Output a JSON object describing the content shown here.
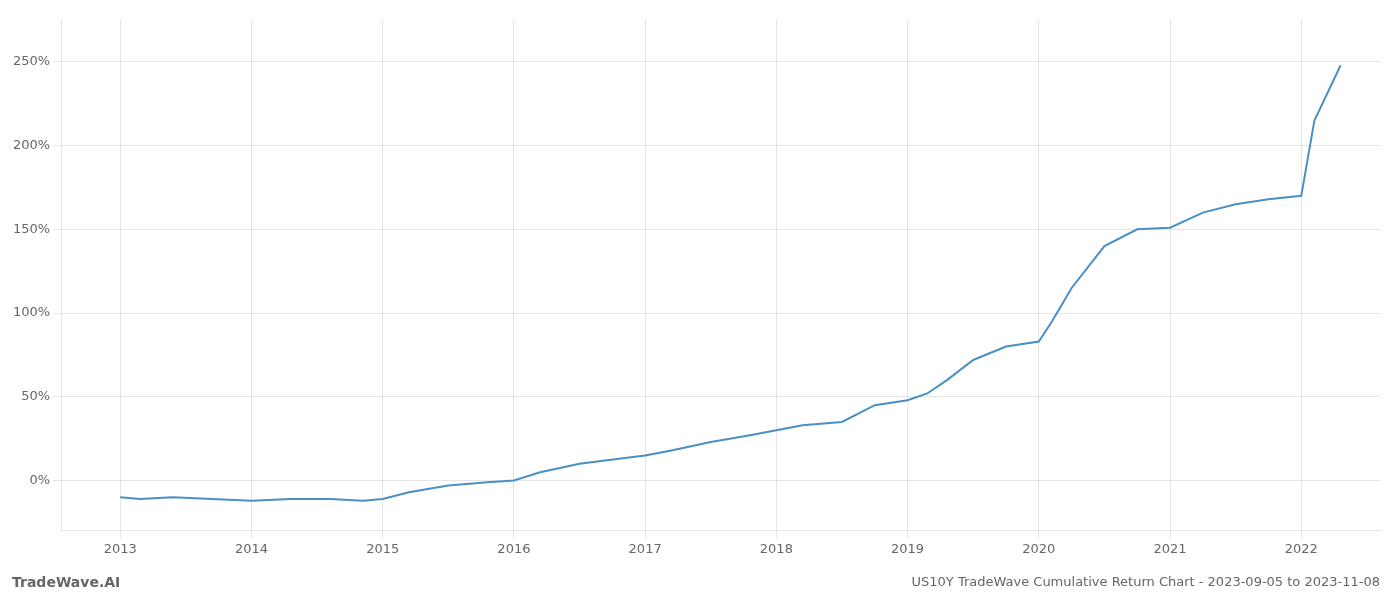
{
  "chart_data": {
    "type": "line",
    "title": "US10Y TradeWave Cumulative Return Chart - 2023-09-05 to 2023-11-08",
    "annotations": [
      "TradeWave.AI"
    ],
    "color": "#4a90c4",
    "grid": true,
    "x": [
      2013.0,
      2013.15,
      2013.4,
      2013.7,
      2014.0,
      2014.3,
      2014.6,
      2014.85,
      2015.0,
      2015.2,
      2015.5,
      2015.8,
      2016.0,
      2016.2,
      2016.5,
      2016.8,
      2017.0,
      2017.2,
      2017.5,
      2017.8,
      2018.0,
      2018.2,
      2018.5,
      2018.75,
      2019.0,
      2019.15,
      2019.3,
      2019.5,
      2019.75,
      2020.0,
      2020.1,
      2020.25,
      2020.5,
      2020.75,
      2021.0,
      2021.25,
      2021.5,
      2021.75,
      2022.0,
      2022.1,
      2022.3
    ],
    "values": [
      -10,
      -11,
      -10,
      -11,
      -12,
      -11,
      -11,
      -12,
      -11,
      -7,
      -3,
      -1,
      0,
      5,
      10,
      13,
      15,
      18,
      23,
      27,
      30,
      33,
      35,
      45,
      48,
      52,
      60,
      72,
      80,
      83,
      95,
      115,
      140,
      150,
      151,
      160,
      165,
      168,
      170,
      215,
      248
    ],
    "xlim": [
      2012.55,
      2022.6
    ],
    "xticks": [
      2013,
      2014,
      2015,
      2016,
      2017,
      2018,
      2019,
      2020,
      2021,
      2022
    ],
    "ylim": [
      -30,
      275
    ],
    "yticks": [
      {
        "value": 0,
        "label": "0%"
      },
      {
        "value": 50,
        "label": "50%"
      },
      {
        "value": 100,
        "label": "100%"
      },
      {
        "value": 150,
        "label": "150%"
      },
      {
        "value": 200,
        "label": "200%"
      },
      {
        "value": 250,
        "label": "250%"
      }
    ]
  }
}
